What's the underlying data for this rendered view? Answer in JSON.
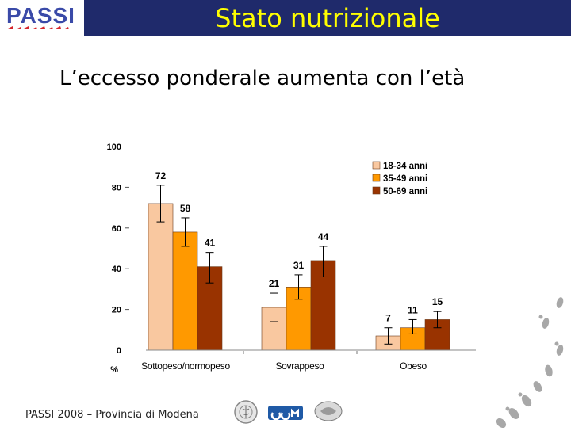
{
  "header": {
    "logo_text": "PASSI",
    "title": "Stato nutrizionale"
  },
  "subtitle": "L’eccesso ponderale aumenta con l’età",
  "footer": {
    "text": "PASSI 2008 – Provincia di Modena"
  },
  "colors": {
    "header_bg": "#1f2a6b",
    "title": "#ffff00",
    "logo_red": "#d6262c",
    "logo_blue": "#3a4aa8"
  },
  "chart_data": {
    "type": "bar",
    "ylabel": "%",
    "ylim": [
      0,
      100
    ],
    "yticks": [
      0,
      20,
      40,
      60,
      80,
      100
    ],
    "grid": false,
    "legend_position": "top-right",
    "error_bars": true,
    "categories": [
      "Sottopeso/normopeso",
      "Sovrappeso",
      "Obeso"
    ],
    "series": [
      {
        "name": "18-34 anni",
        "color": "#f9c8a0",
        "values": [
          72,
          21,
          7
        ],
        "err_low": [
          63,
          14,
          3
        ],
        "err_high": [
          81,
          28,
          11
        ]
      },
      {
        "name": "35-49 anni",
        "color": "#ff9900",
        "values": [
          58,
          31,
          11
        ],
        "err_low": [
          51,
          25,
          8
        ],
        "err_high": [
          65,
          37,
          15
        ]
      },
      {
        "name": "50-69 anni",
        "color": "#993300",
        "values": [
          41,
          44,
          15
        ],
        "err_low": [
          33,
          36,
          11
        ],
        "err_high": [
          48,
          51,
          19
        ]
      }
    ]
  }
}
